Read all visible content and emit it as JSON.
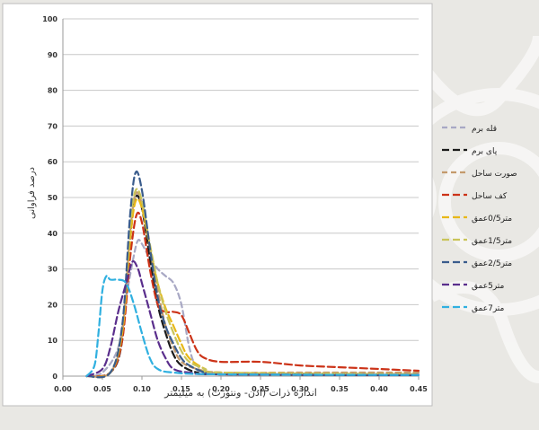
{
  "chart_data": {
    "type": "line",
    "xlabel": "اندازه ذرات (ادن- ونتورث) به میلیمتر",
    "ylabel": "درصد فراوانی",
    "xlim": [
      0,
      0.45
    ],
    "ylim": [
      0,
      100
    ],
    "x_ticks": [
      "0.00",
      "0.05",
      "0.10",
      "0.15",
      "0.20",
      "0.25",
      "0.30",
      "0.35",
      "0.40",
      "0.45"
    ],
    "y_ticks": [
      "0",
      "10",
      "20",
      "30",
      "40",
      "50",
      "60",
      "70",
      "80",
      "90",
      "100"
    ],
    "grid": "horizontal",
    "legend_position": "right",
    "series": [
      {
        "name": "قله برم",
        "color": "#a8a8c4",
        "dash": "6,4",
        "points": [
          [
            0.03,
            0
          ],
          [
            0.05,
            1
          ],
          [
            0.07,
            8
          ],
          [
            0.08,
            22
          ],
          [
            0.09,
            34
          ],
          [
            0.095,
            38
          ],
          [
            0.1,
            37
          ],
          [
            0.11,
            33
          ],
          [
            0.12,
            30
          ],
          [
            0.13,
            28
          ],
          [
            0.14,
            26
          ],
          [
            0.15,
            20
          ],
          [
            0.16,
            8
          ],
          [
            0.17,
            3
          ],
          [
            0.2,
            1
          ],
          [
            0.45,
            0.5
          ]
        ]
      },
      {
        "name": "پای برم",
        "color": "#1a1a1a",
        "dash": "8,4",
        "points": [
          [
            0.03,
            0
          ],
          [
            0.06,
            1
          ],
          [
            0.075,
            10
          ],
          [
            0.085,
            38
          ],
          [
            0.092,
            50
          ],
          [
            0.1,
            47
          ],
          [
            0.11,
            33
          ],
          [
            0.12,
            20
          ],
          [
            0.13,
            12
          ],
          [
            0.14,
            6
          ],
          [
            0.15,
            3
          ],
          [
            0.17,
            1
          ],
          [
            0.2,
            0.5
          ],
          [
            0.45,
            0.3
          ]
        ]
      },
      {
        "name": "صورت ساحل",
        "color": "#c49a6c",
        "dash": "6,4",
        "points": [
          [
            0.03,
            0
          ],
          [
            0.06,
            1
          ],
          [
            0.075,
            12
          ],
          [
            0.085,
            40
          ],
          [
            0.092,
            51
          ],
          [
            0.1,
            48
          ],
          [
            0.11,
            36
          ],
          [
            0.12,
            24
          ],
          [
            0.13,
            14
          ],
          [
            0.14,
            8
          ],
          [
            0.15,
            4
          ],
          [
            0.17,
            2
          ],
          [
            0.2,
            1
          ],
          [
            0.3,
            1
          ],
          [
            0.45,
            1
          ]
        ]
      },
      {
        "name": "کف ساحل",
        "color": "#cc3318",
        "dash": "8,4",
        "points": [
          [
            0.03,
            0
          ],
          [
            0.06,
            1
          ],
          [
            0.075,
            10
          ],
          [
            0.085,
            33
          ],
          [
            0.093,
            45
          ],
          [
            0.1,
            43
          ],
          [
            0.11,
            30
          ],
          [
            0.12,
            20
          ],
          [
            0.13,
            18
          ],
          [
            0.14,
            18
          ],
          [
            0.15,
            17
          ],
          [
            0.16,
            12
          ],
          [
            0.17,
            7
          ],
          [
            0.18,
            5
          ],
          [
            0.2,
            4
          ],
          [
            0.25,
            4
          ],
          [
            0.3,
            3
          ],
          [
            0.35,
            2.5
          ],
          [
            0.4,
            2
          ],
          [
            0.45,
            1.5
          ]
        ]
      },
      {
        "name": "متر0/5عمق",
        "color": "#e8b818",
        "dash": "8,4",
        "points": [
          [
            0.03,
            0
          ],
          [
            0.06,
            1
          ],
          [
            0.075,
            12
          ],
          [
            0.085,
            38
          ],
          [
            0.092,
            49
          ],
          [
            0.1,
            47
          ],
          [
            0.11,
            36
          ],
          [
            0.12,
            26
          ],
          [
            0.13,
            19
          ],
          [
            0.14,
            14
          ],
          [
            0.15,
            9
          ],
          [
            0.16,
            5
          ],
          [
            0.18,
            2
          ],
          [
            0.2,
            1
          ],
          [
            0.45,
            0.5
          ]
        ]
      },
      {
        "name": "متر1/5عمق",
        "color": "#c9c45a",
        "dash": "8,4",
        "points": [
          [
            0.03,
            0
          ],
          [
            0.06,
            1
          ],
          [
            0.075,
            14
          ],
          [
            0.085,
            42
          ],
          [
            0.092,
            52
          ],
          [
            0.1,
            49
          ],
          [
            0.11,
            37
          ],
          [
            0.12,
            26
          ],
          [
            0.13,
            18
          ],
          [
            0.14,
            12
          ],
          [
            0.15,
            7
          ],
          [
            0.16,
            4
          ],
          [
            0.18,
            2
          ],
          [
            0.2,
            1
          ],
          [
            0.45,
            0.5
          ]
        ]
      },
      {
        "name": "متر2/5عمق",
        "color": "#3a5c8c",
        "dash": "8,4",
        "points": [
          [
            0.03,
            0
          ],
          [
            0.06,
            1
          ],
          [
            0.075,
            14
          ],
          [
            0.085,
            45
          ],
          [
            0.092,
            57
          ],
          [
            0.1,
            52
          ],
          [
            0.11,
            36
          ],
          [
            0.12,
            22
          ],
          [
            0.13,
            14
          ],
          [
            0.14,
            9
          ],
          [
            0.15,
            5
          ],
          [
            0.16,
            3
          ],
          [
            0.18,
            1
          ],
          [
            0.2,
            0.5
          ],
          [
            0.45,
            0.3
          ]
        ]
      },
      {
        "name": "متر5عمق",
        "color": "#5a2e8c",
        "dash": "8,4",
        "points": [
          [
            0.03,
            0
          ],
          [
            0.05,
            2
          ],
          [
            0.06,
            8
          ],
          [
            0.07,
            18
          ],
          [
            0.08,
            26
          ],
          [
            0.088,
            32
          ],
          [
            0.095,
            30
          ],
          [
            0.1,
            26
          ],
          [
            0.11,
            18
          ],
          [
            0.12,
            10
          ],
          [
            0.13,
            5
          ],
          [
            0.14,
            2
          ],
          [
            0.16,
            1
          ],
          [
            0.2,
            0.5
          ],
          [
            0.45,
            0.3
          ]
        ]
      },
      {
        "name": "متر7عمق",
        "color": "#30b0e0",
        "dash": "8,4",
        "points": [
          [
            0.03,
            0
          ],
          [
            0.04,
            3
          ],
          [
            0.045,
            12
          ],
          [
            0.05,
            24
          ],
          [
            0.055,
            28
          ],
          [
            0.06,
            27
          ],
          [
            0.07,
            27
          ],
          [
            0.08,
            26
          ],
          [
            0.09,
            20
          ],
          [
            0.1,
            12
          ],
          [
            0.11,
            5
          ],
          [
            0.12,
            2
          ],
          [
            0.14,
            1
          ],
          [
            0.2,
            0.5
          ],
          [
            0.45,
            0.3
          ]
        ]
      }
    ]
  }
}
